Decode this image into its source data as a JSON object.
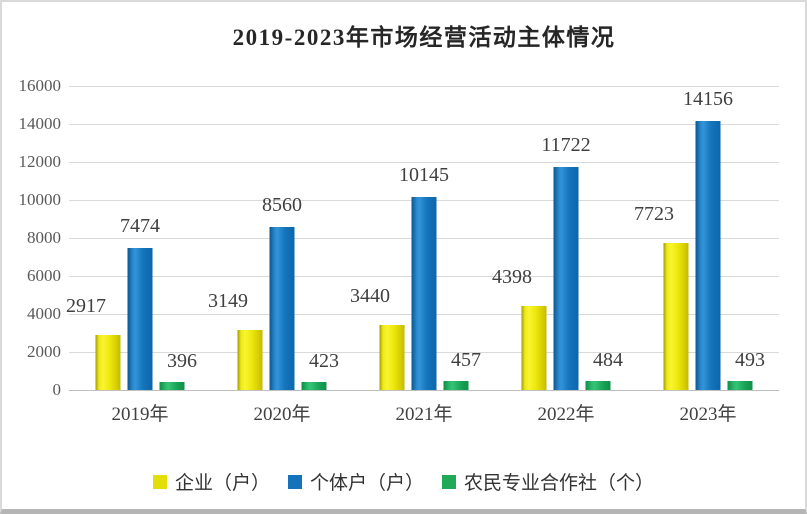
{
  "chart_data": {
    "type": "bar",
    "title": "2019-2023年市场经营活动主体情况",
    "categories": [
      "2019年",
      "2020年",
      "2021年",
      "2022年",
      "2023年"
    ],
    "series": [
      {
        "name": "企业（户）",
        "values": [
          2917,
          3149,
          3440,
          4398,
          7723
        ],
        "color": "#e3de0a"
      },
      {
        "name": "个体户（户）",
        "values": [
          7474,
          8560,
          10145,
          11722,
          14156
        ],
        "color": "#1473bb"
      },
      {
        "name": "农民专业合作社（个）",
        "values": [
          396,
          423,
          457,
          484,
          493
        ],
        "color": "#22a958"
      }
    ],
    "ylim": [
      0,
      16000
    ],
    "ytick_step": 2000,
    "yticks": [
      "16000",
      "14000",
      "12000",
      "10000",
      "8000",
      "6000",
      "4000",
      "2000",
      "0"
    ],
    "grid": true,
    "legend_position": "bottom",
    "data_labels_shown": true,
    "colors": {
      "gridline": "#d9d9d9",
      "tick_text": "#595959",
      "label_text": "#404040",
      "title_text": "#262626",
      "frame_border": "#d9d9d9",
      "frame_bottom": "#b5b5b5"
    }
  }
}
